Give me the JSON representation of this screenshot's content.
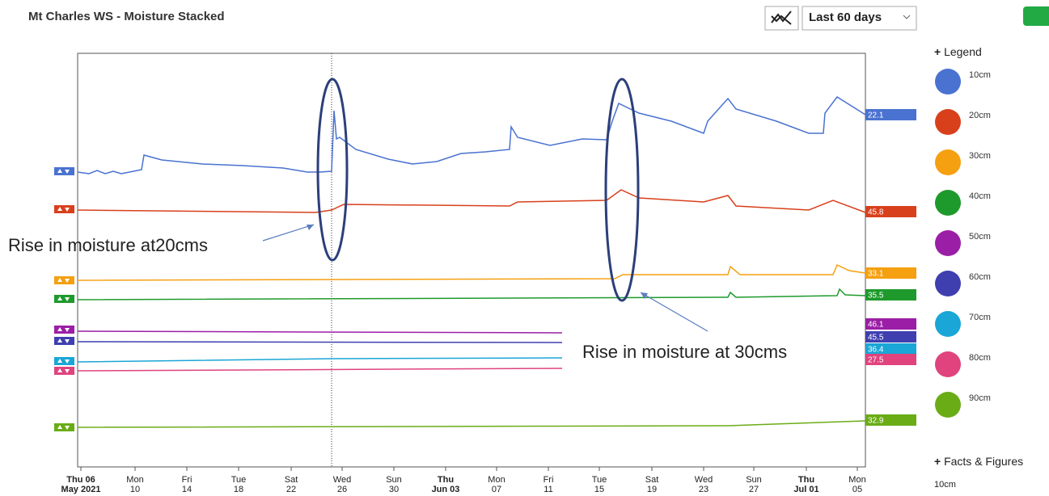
{
  "header": {
    "title": "Mt Charles WS - Moisture Stacked",
    "range": "Last 60 days"
  },
  "chart": {
    "x_labels": [
      {
        "day": "Thu 06",
        "date": "May 2021",
        "bold": true
      },
      {
        "day": "Mon",
        "date": "10"
      },
      {
        "day": "Fri",
        "date": "14"
      },
      {
        "day": "Tue",
        "date": "18"
      },
      {
        "day": "Sat",
        "date": "22"
      },
      {
        "day": "Wed",
        "date": "26"
      },
      {
        "day": "Sun",
        "date": "30"
      },
      {
        "day": "Thu",
        "date": "Jun 03",
        "bold": true
      },
      {
        "day": "Mon",
        "date": "07"
      },
      {
        "day": "Fri",
        "date": "11"
      },
      {
        "day": "Tue",
        "date": "15"
      },
      {
        "day": "Sat",
        "date": "19"
      },
      {
        "day": "Wed",
        "date": "23"
      },
      {
        "day": "Sun",
        "date": "27"
      },
      {
        "day": "Thu",
        "date": "Jul 01",
        "bold": true
      },
      {
        "day": "Mon",
        "date": "05"
      }
    ],
    "series": [
      {
        "name": "10cm",
        "color": "#4a72d0",
        "last_value": 22.1
      },
      {
        "name": "20cm",
        "color": "#d8401c",
        "last_value": 45.8
      },
      {
        "name": "30cm",
        "color": "#f5a011",
        "last_value": 33.1
      },
      {
        "name": "40cm",
        "color": "#1e9a2c",
        "last_value": 35.5
      },
      {
        "name": "50cm",
        "color": "#9b1ea6",
        "last_value": 46.1
      },
      {
        "name": "60cm",
        "color": "#3f3fb0",
        "last_value": 45.5
      },
      {
        "name": "70cm",
        "color": "#1aa6d6",
        "last_value": 36.4
      },
      {
        "name": "80cm",
        "color": "#e0437e",
        "last_value": 27.5
      },
      {
        "name": "90cm",
        "color": "#6aac16",
        "last_value": 32.9
      }
    ]
  },
  "legend": {
    "title": "Legend"
  },
  "annotations": [
    "Rise in moisture at20cms",
    "Rise in moisture at 30cms"
  ],
  "facts": {
    "title": "Facts & Figures",
    "item": "10cm"
  }
}
